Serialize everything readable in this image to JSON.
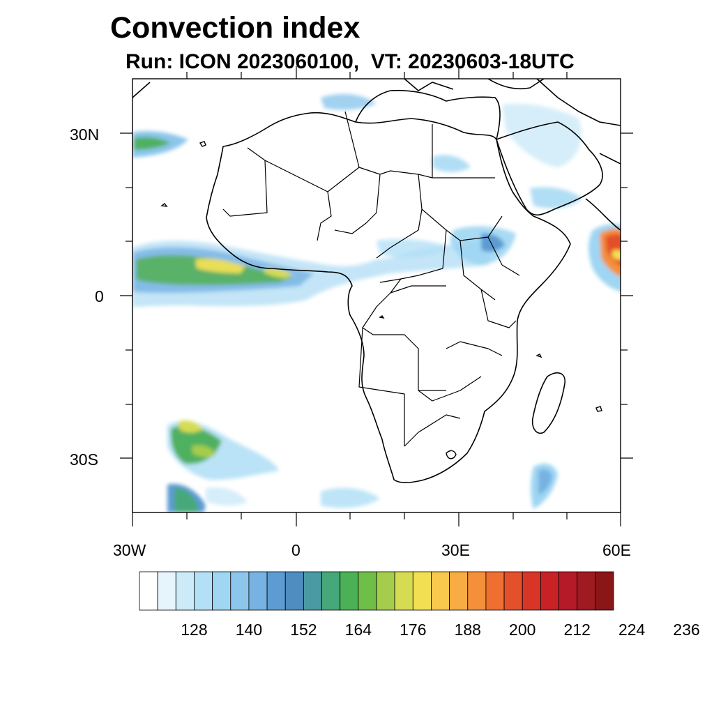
{
  "title": "Convection index",
  "subtitle": "Run: ICON 2023060100,  VT: 20230603-18UTC",
  "map": {
    "lon_range": [
      -30,
      60
    ],
    "lat_range": [
      -40,
      40
    ],
    "lat_labels": [
      "30N",
      "0",
      "30S"
    ],
    "lat_values": [
      30,
      0,
      -30
    ],
    "lon_labels": [
      "30W",
      "0",
      "30E",
      "60E"
    ],
    "lon_values": [
      -30,
      0,
      30,
      60
    ]
  },
  "colorbar": {
    "colors": [
      "#ffffff",
      "#e6f4fc",
      "#cceaf8",
      "#b3e0f6",
      "#9fd6f3",
      "#8cc6ec",
      "#76b2e2",
      "#5d9bd3",
      "#4f8cc0",
      "#4a9aa4",
      "#46a87a",
      "#4ab156",
      "#6fbe47",
      "#a5cd4c",
      "#d6dc52",
      "#f2e052",
      "#f8c94c",
      "#f8ac44",
      "#f4903a",
      "#ee6f30",
      "#e4502a",
      "#d93526",
      "#c82126",
      "#b51a28",
      "#a01a22",
      "#8a1616"
    ],
    "tick_labels": [
      "128",
      "140",
      "152",
      "164",
      "176",
      "188",
      "200",
      "212",
      "224",
      "236"
    ],
    "tick_values": [
      128,
      140,
      152,
      164,
      176,
      188,
      200,
      212,
      224,
      236
    ],
    "min": 116,
    "step": 4
  }
}
